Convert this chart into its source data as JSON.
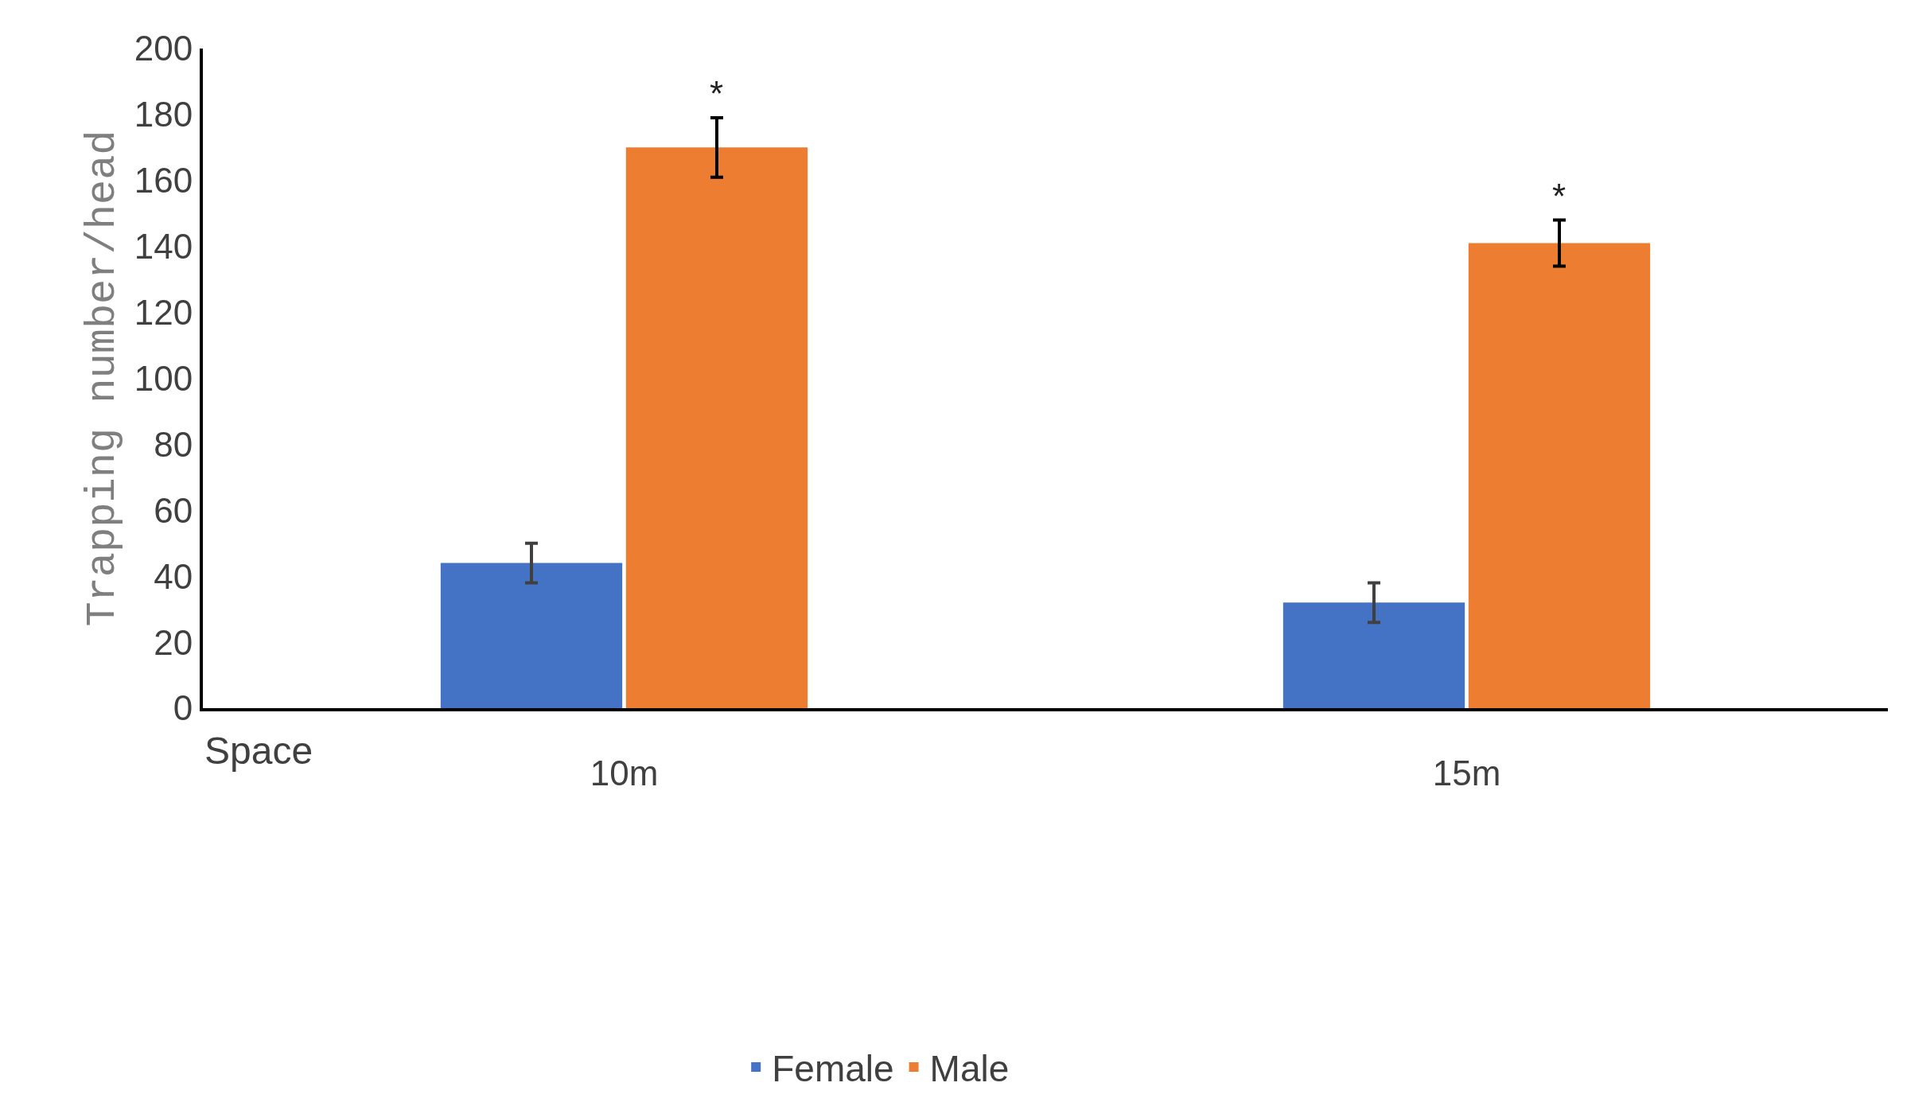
{
  "chart_data": {
    "type": "bar",
    "xlabel": "Space",
    "ylabel": "Trapping number/head",
    "categories": [
      "10m",
      "15m"
    ],
    "series": [
      {
        "name": "Female",
        "color": "#4472c4",
        "values": [
          44,
          32
        ],
        "errors": [
          6,
          6
        ]
      },
      {
        "name": "Male",
        "color": "#ed7d31",
        "values": [
          170,
          141
        ],
        "errors": [
          9,
          7
        ]
      }
    ],
    "ylim": [
      0,
      200
    ],
    "yticks": [
      0,
      20,
      40,
      60,
      80,
      100,
      120,
      140,
      160,
      180,
      200
    ],
    "grid": false,
    "legend": "bottom",
    "annotations": [
      "*",
      "*"
    ]
  }
}
